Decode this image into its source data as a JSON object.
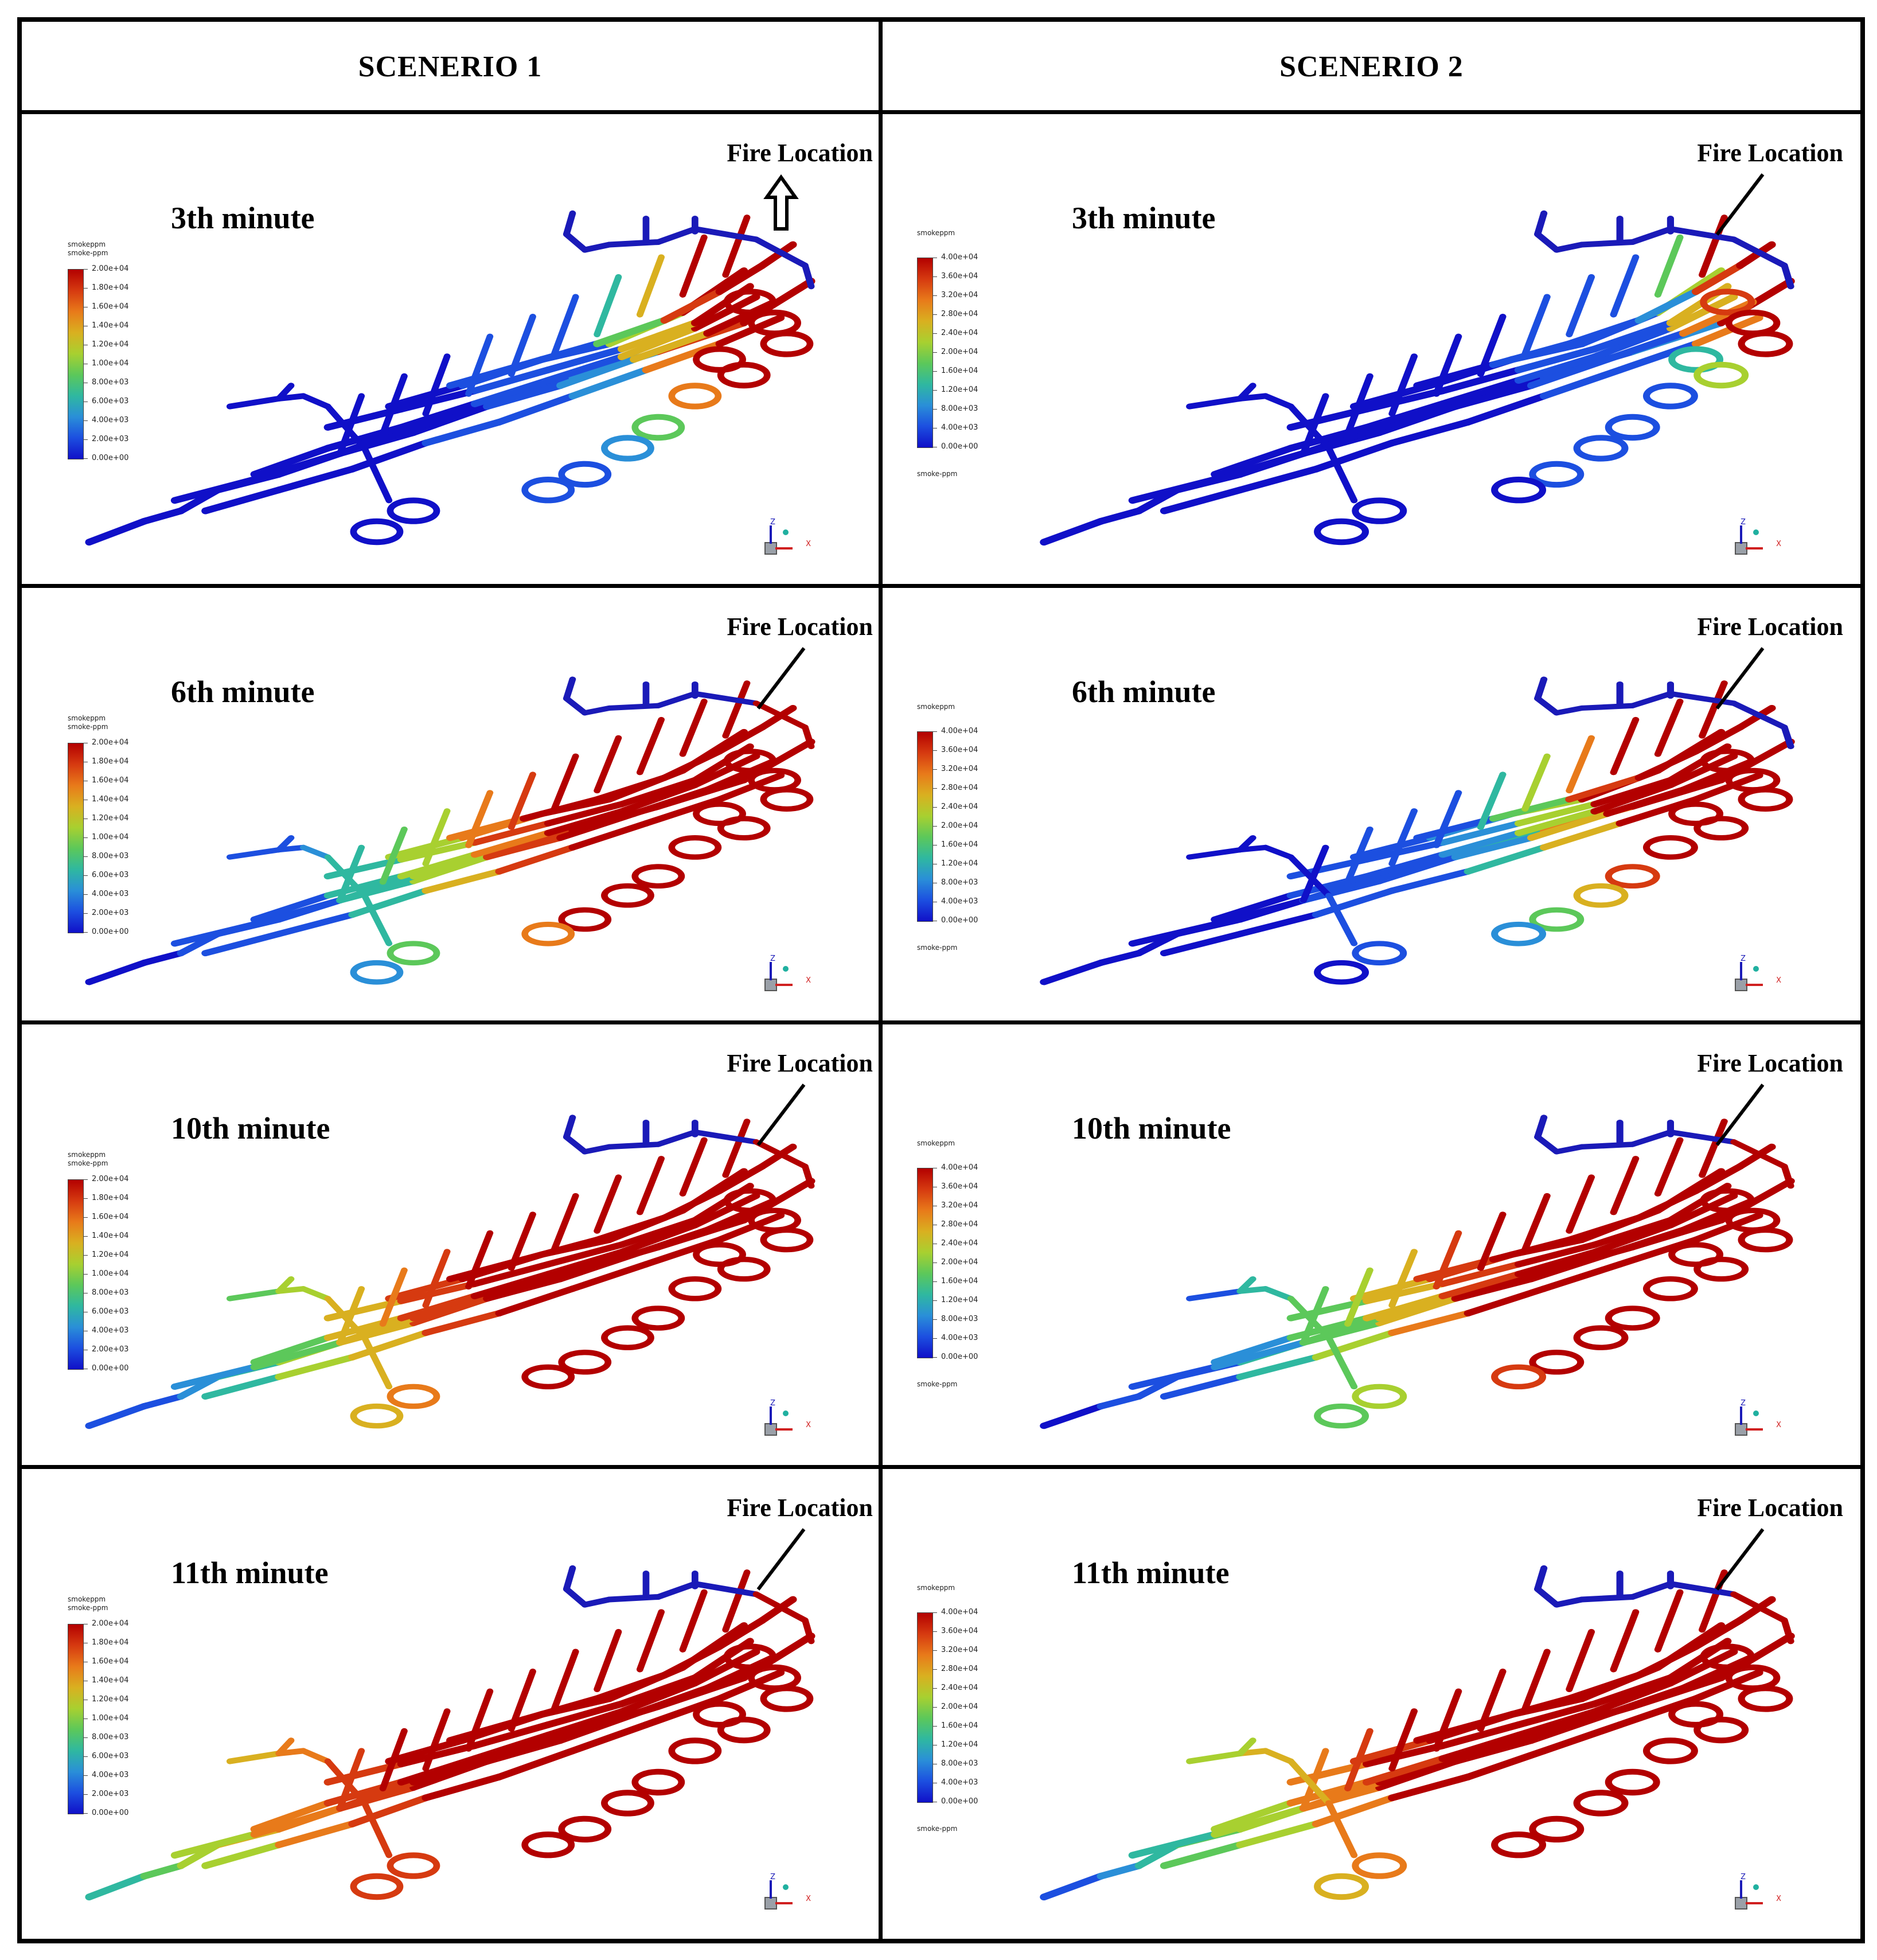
{
  "headers": [
    "SCENERIO 1",
    "SCENERIO 2"
  ],
  "fire_label": "Fire Location",
  "legend": {
    "title_scenario1_line1": "smokeppm",
    "title_scenario1_line2": "smoke-ppm",
    "title_scenario2_top": "smokeppm",
    "title_scenario2_bottom": "smoke-ppm",
    "scenario1_ticks": [
      "2.00e+04",
      "1.80e+04",
      "1.60e+04",
      "1.40e+04",
      "1.20e+04",
      "1.00e+04",
      "8.00e+03",
      "6.00e+03",
      "4.00e+03",
      "2.00e+03",
      "0.00e+00"
    ],
    "scenario2_ticks": [
      "4.00e+04",
      "3.60e+04",
      "3.20e+04",
      "2.80e+04",
      "2.40e+04",
      "2.00e+04",
      "1.60e+04",
      "1.20e+04",
      "8.00e+03",
      "4.00e+03",
      "0.00e+00"
    ],
    "colors": [
      "#b30000",
      "#d63a10",
      "#e87a1a",
      "#d9b020",
      "#a8d030",
      "#5cc85a",
      "#2fb8a0",
      "#2a8fd8",
      "#1c4fe0",
      "#1010c8"
    ]
  },
  "axis_labels": {
    "x": "X",
    "z": "Z"
  },
  "panels": [
    {
      "scenario": 1,
      "minute": "3th minute",
      "level": 0.25
    },
    {
      "scenario": 2,
      "minute": "3th minute",
      "level": 0.15
    },
    {
      "scenario": 1,
      "minute": "6th minute",
      "level": 0.55
    },
    {
      "scenario": 2,
      "minute": "6th minute",
      "level": 0.35
    },
    {
      "scenario": 1,
      "minute": "10th minute",
      "level": 0.7
    },
    {
      "scenario": 2,
      "minute": "10th minute",
      "level": 0.6
    },
    {
      "scenario": 1,
      "minute": "11th minute",
      "level": 0.85
    },
    {
      "scenario": 2,
      "minute": "11th minute",
      "level": 0.75
    }
  ]
}
